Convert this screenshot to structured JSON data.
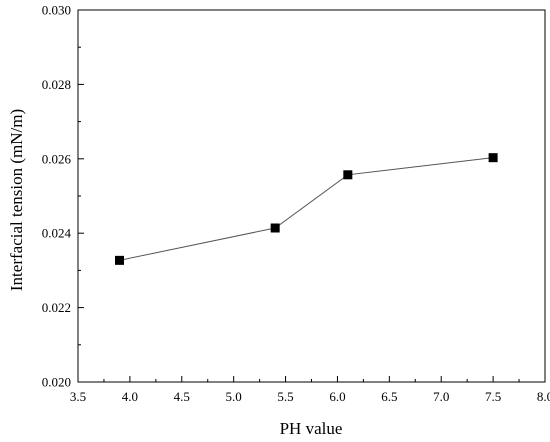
{
  "chart_data": {
    "type": "line",
    "title": "",
    "xlabel": "PH value",
    "ylabel": "Interfacial tension  (mN/m)",
    "xlim": [
      3.5,
      8.0
    ],
    "ylim": [
      0.02,
      0.03
    ],
    "x_ticks": [
      "3.5",
      "4.0",
      "4.5",
      "5.0",
      "5.5",
      "6.0",
      "6.5",
      "7.0",
      "7.5",
      "8.0"
    ],
    "y_ticks": [
      "0.020",
      "0.022",
      "0.024",
      "0.026",
      "0.028",
      "0.030"
    ],
    "grid": false,
    "legend": "none",
    "series": [
      {
        "x": [
          3.9,
          5.4,
          6.1,
          7.5
        ],
        "y": [
          0.02327,
          0.02414,
          0.02557,
          0.02603
        ],
        "marker": "square",
        "color": "#000000",
        "line_color": "#555555"
      }
    ]
  }
}
